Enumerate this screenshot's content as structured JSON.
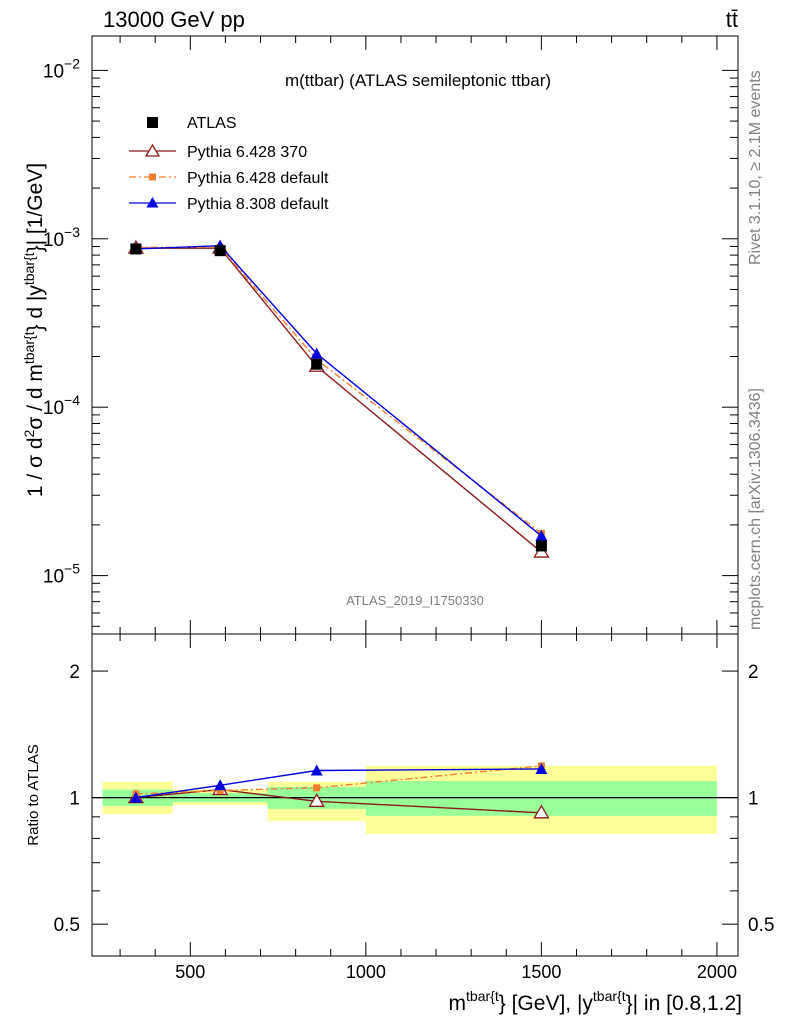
{
  "header": {
    "left": "13000 GeV pp",
    "right": "tt̄"
  },
  "side": {
    "rivet": "Rivet 3.1.10, ≥ 2.1M events",
    "mcplots": "mcplots.cern.ch [arXiv:1306.3436]"
  },
  "chart_data": [
    {
      "type": "line",
      "title": "m(ttbar) (ATLAS semileptonic ttbar)",
      "watermark": "ATLAS_2019_I1750330",
      "ylabel": {
        "main": "1 / σ d",
        "sup2": "2",
        "mid": "σ / d m",
        "tbar": "tbar{t",
        "close": "} d |y",
        "tbar2": "tbar{t",
        "tail": "}| [1/GeV]"
      },
      "yscale": "log",
      "xlim": [
        220,
        2060
      ],
      "ylim": [
        4.5e-06,
        0.016
      ],
      "yticks": [
        {
          "v": 0.01,
          "mant": "10",
          "exp": "−2"
        },
        {
          "v": 0.001,
          "mant": "10",
          "exp": "−3"
        },
        {
          "v": 0.0001,
          "mant": "10",
          "exp": "−4"
        },
        {
          "v": 1e-05,
          "mant": "10",
          "exp": "−5"
        }
      ],
      "legend_position": "top-left",
      "data": {
        "name": "ATLAS",
        "x": [
          345,
          585,
          860,
          1500
        ],
        "y": [
          0.00087,
          0.00085,
          0.00018,
          1.5e-05
        ]
      },
      "series": [
        {
          "name": "Pythia 6.428 370",
          "color": "#8b1a1a",
          "marker": "open-triangle",
          "dash": "solid",
          "x": [
            345,
            585,
            860,
            1500
          ],
          "y": [
            0.00088,
            0.00088,
            0.000175,
            1.38e-05
          ]
        },
        {
          "name": "Pythia 6.428 default",
          "color": "#f08030",
          "marker": "square",
          "dash": "dashdot",
          "x": [
            345,
            585,
            860,
            1500
          ],
          "y": [
            0.00089,
            0.00089,
            0.000192,
            1.78e-05
          ]
        },
        {
          "name": "Pythia 8.308 default",
          "color": "#0000dd",
          "marker": "triangle",
          "dash": "solid",
          "x": [
            345,
            585,
            860,
            1500
          ],
          "y": [
            0.00087,
            0.00091,
            0.000208,
            1.72e-05
          ]
        }
      ]
    },
    {
      "type": "line",
      "ylabel": "Ratio to ATLAS",
      "xlabel": {
        "pre": "m",
        "sup1": "tbar{t",
        "mid": "} [GeV], |y",
        "sup2": "tbar{t",
        "post": "}| in [0.8,1.2]"
      },
      "yscale": "log",
      "xlim": [
        220,
        2060
      ],
      "ylim": [
        0.42,
        2.45
      ],
      "xticks": [
        500,
        1000,
        1500,
        2000
      ],
      "yticks": [
        {
          "v": 0.5,
          "label": "0.5"
        },
        {
          "v": 1,
          "label": "1"
        },
        {
          "v": 2,
          "label": "2"
        }
      ],
      "bands": [
        {
          "x": [
            250,
            450
          ],
          "inner": [
            0.955,
            1.045
          ],
          "outer": [
            0.915,
            1.09
          ]
        },
        {
          "x": [
            450,
            720
          ],
          "inner": [
            0.975,
            1.025
          ],
          "outer": [
            0.96,
            1.045
          ]
        },
        {
          "x": [
            720,
            1000
          ],
          "inner": [
            0.94,
            1.06
          ],
          "outer": [
            0.88,
            1.09
          ]
        },
        {
          "x": [
            1000,
            2000
          ],
          "inner": [
            0.905,
            1.095
          ],
          "outer": [
            0.82,
            1.19
          ]
        }
      ],
      "band_colors": {
        "inner": "#99ff99",
        "outer": "#ffff99"
      },
      "series": [
        {
          "name": "Pythia 6.428 370",
          "color": "#8b1a1a",
          "marker": "open-triangle",
          "dash": "solid",
          "x": [
            345,
            585,
            860,
            1500
          ],
          "y": [
            1.0,
            1.045,
            0.98,
            0.92
          ]
        },
        {
          "name": "Pythia 6.428 default",
          "color": "#f08030",
          "marker": "square",
          "dash": "dashdot",
          "x": [
            345,
            585,
            860,
            1500
          ],
          "y": [
            1.02,
            1.04,
            1.055,
            1.19
          ]
        },
        {
          "name": "Pythia 8.308 default",
          "color": "#0000dd",
          "marker": "triangle",
          "dash": "solid",
          "x": [
            345,
            585,
            860,
            1500
          ],
          "y": [
            1.0,
            1.07,
            1.16,
            1.17
          ]
        }
      ]
    }
  ]
}
